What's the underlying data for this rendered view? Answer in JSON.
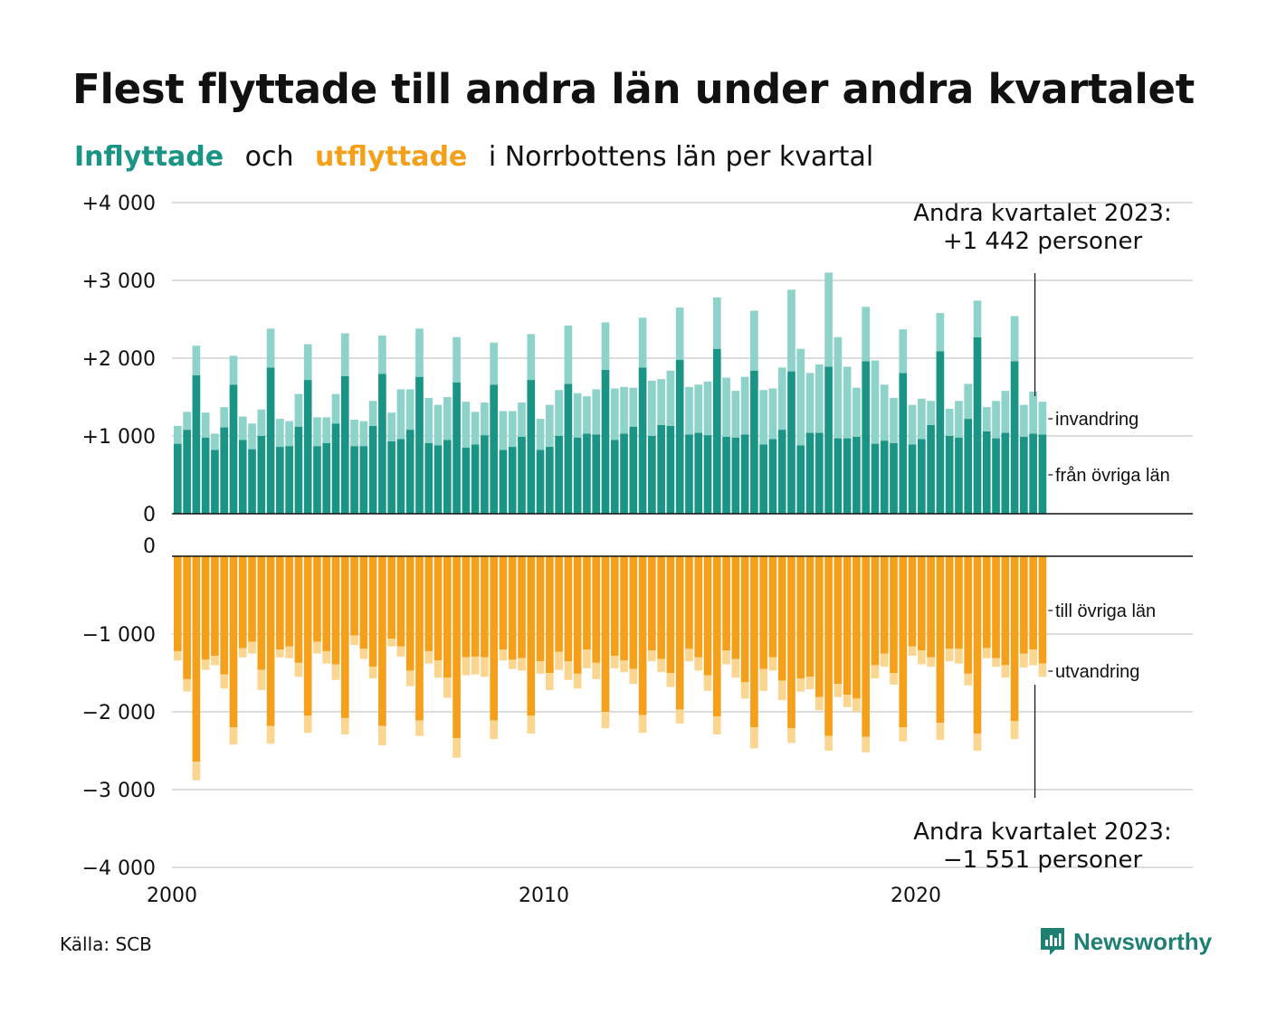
{
  "title": "Flest flyttade till andra län under andra kvartalet",
  "subtitle": {
    "in_word": "Inflyttade",
    "och": "och",
    "out_word": "utflyttade",
    "rest": "i Norrbottens län per kvartal"
  },
  "source": "Källa: SCB",
  "brand": {
    "name": "Newsworthy",
    "icon": "newsworthy-logo-icon",
    "color": "#1e7f73"
  },
  "chart_data": {
    "type": "bar",
    "stacked": true,
    "x_start": "2000 Q1",
    "x_end": "2023 Q2",
    "x_ticks": [
      "2000",
      "2010",
      "2020"
    ],
    "colors": {
      "from_other_counties": "#1a9485",
      "immigration": "#8dd3ca",
      "to_other_counties": "#f5a01a",
      "emigration": "#fbd691"
    },
    "top_panel": {
      "ylim": [
        0,
        4000
      ],
      "y_ticks": [
        "0",
        "+1 000",
        "+2 000",
        "+3 000",
        "+4 000"
      ],
      "series_labels": {
        "from_other_counties": "från övriga län",
        "immigration": "invandring"
      },
      "annotation": {
        "line1": "Andra kvartalet 2023:",
        "line2": "+1 442 personer"
      },
      "from_other_counties": [
        900,
        1080,
        1780,
        980,
        820,
        1110,
        1660,
        950,
        830,
        1000,
        1880,
        860,
        870,
        1120,
        1720,
        870,
        910,
        1160,
        1770,
        870,
        870,
        1130,
        1800,
        930,
        960,
        1080,
        1760,
        910,
        880,
        950,
        1690,
        850,
        890,
        1010,
        1660,
        820,
        860,
        990,
        1720,
        820,
        860,
        1000,
        1670,
        980,
        1030,
        1020,
        1850,
        950,
        1030,
        1120,
        1880,
        1000,
        1140,
        1130,
        1980,
        1020,
        1040,
        1010,
        2120,
        990,
        980,
        1020,
        1840,
        890,
        960,
        1080,
        1830,
        880,
        1040,
        1040,
        1890,
        970,
        970,
        990,
        1960,
        900,
        940,
        910,
        1810,
        890,
        960,
        1140,
        2090,
        1000,
        980,
        1220,
        2270,
        1060,
        970,
        1040,
        1960,
        990,
        1030,
        1020
      ],
      "immigration": [
        230,
        230,
        380,
        320,
        210,
        260,
        370,
        300,
        330,
        340,
        500,
        360,
        320,
        420,
        460,
        370,
        330,
        380,
        550,
        340,
        320,
        320,
        490,
        370,
        640,
        520,
        620,
        580,
        520,
        550,
        580,
        590,
        420,
        420,
        540,
        500,
        460,
        440,
        590,
        400,
        540,
        590,
        750,
        570,
        480,
        580,
        610,
        660,
        600,
        500,
        640,
        710,
        590,
        710,
        670,
        610,
        620,
        690,
        660,
        760,
        600,
        740,
        770,
        700,
        650,
        800,
        1050,
        1240,
        770,
        880,
        1210,
        1300,
        920,
        630,
        700,
        1070,
        720,
        580,
        560,
        510,
        520,
        310,
        490,
        350,
        470,
        450,
        470,
        310,
        480,
        540,
        580,
        410,
        540,
        420
      ]
    },
    "bottom_panel": {
      "ylim": [
        -4000,
        0
      ],
      "y_ticks": [
        "0",
        "−1 000",
        "−2 000",
        "−3 000",
        "−4 000"
      ],
      "series_labels": {
        "to_other_counties": "till övriga län",
        "emigration": "utvandring"
      },
      "annotation": {
        "line1": "Andra kvartalet 2023:",
        "line2": "−1 551 personer"
      },
      "to_other_counties": [
        -1220,
        -1580,
        -2640,
        -1330,
        -1280,
        -1520,
        -2200,
        -1180,
        -1100,
        -1460,
        -2180,
        -1200,
        -1160,
        -1370,
        -2050,
        -1100,
        -1220,
        -1390,
        -2080,
        -1020,
        -1190,
        -1420,
        -2180,
        -1060,
        -1160,
        -1470,
        -2110,
        -1220,
        -1340,
        -1560,
        -2340,
        -1300,
        -1290,
        -1300,
        -2110,
        -1200,
        -1330,
        -1310,
        -2050,
        -1350,
        -1500,
        -1230,
        -1350,
        -1510,
        -1200,
        -1370,
        -2000,
        -1280,
        -1340,
        -1450,
        -2040,
        -1210,
        -1320,
        -1500,
        -1970,
        -1190,
        -1300,
        -1530,
        -2060,
        -1210,
        -1320,
        -1620,
        -2200,
        -1450,
        -1300,
        -1600,
        -2210,
        -1570,
        -1550,
        -1810,
        -2310,
        -1640,
        -1780,
        -1830,
        -2320,
        -1400,
        -1250,
        -1500,
        -2200,
        -1160,
        -1210,
        -1300,
        -2140,
        -1190,
        -1190,
        -1510,
        -2280,
        -1180,
        -1310,
        -1400,
        -2120,
        -1250,
        -1200,
        -1380
      ],
      "emigration": [
        -120,
        -160,
        -240,
        -130,
        -120,
        -180,
        -220,
        -120,
        -150,
        -260,
        -230,
        -100,
        -150,
        -180,
        -220,
        -150,
        -160,
        -200,
        -210,
        -120,
        -130,
        -150,
        -250,
        -100,
        -130,
        -200,
        -200,
        -160,
        -220,
        -260,
        -250,
        -230,
        -230,
        -250,
        -240,
        -140,
        -120,
        -160,
        -230,
        -160,
        -220,
        -230,
        -240,
        -190,
        -240,
        -210,
        -210,
        -160,
        -150,
        -190,
        -230,
        -140,
        -170,
        -180,
        -180,
        -160,
        -170,
        -200,
        -230,
        -180,
        -240,
        -210,
        -270,
        -280,
        -170,
        -250,
        -190,
        -170,
        -160,
        -170,
        -190,
        -170,
        -160,
        -170,
        -200,
        -170,
        -170,
        -150,
        -180,
        -120,
        -180,
        -120,
        -220,
        -160,
        -190,
        -150,
        -220,
        -130,
        -110,
        -160,
        -230,
        -180,
        -200,
        -170
      ]
    }
  }
}
